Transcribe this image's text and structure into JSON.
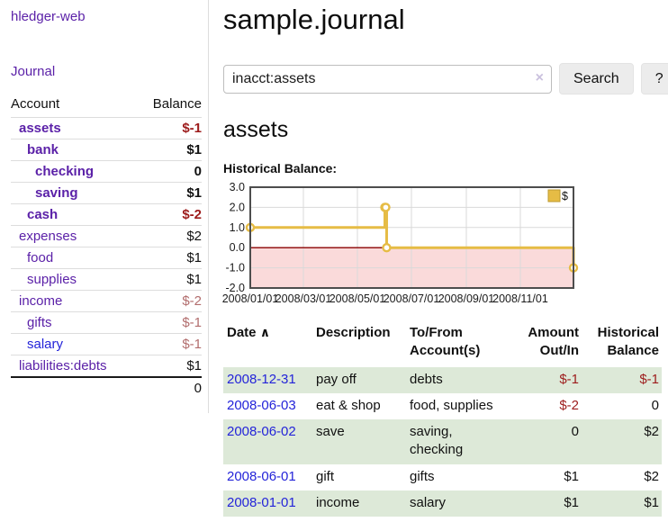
{
  "app": {
    "brand": "hledger-web"
  },
  "colors": {
    "accent_purple": "#5b21a8",
    "link_blue": "#2424d9",
    "negative": "#9d1c1c",
    "negative_soft": "#b26d6d",
    "row_stripe_green": "#dde9d8",
    "chart_gold": "#e6bc45",
    "chart_negative_fill": "#fadada",
    "chart_zero_line": "#8b0000"
  },
  "sidebar": {
    "nav": [
      {
        "label": "Journal"
      }
    ],
    "table": {
      "headers": {
        "account": "Account",
        "balance": "Balance"
      },
      "accounts": [
        {
          "name": "assets",
          "indent": 1,
          "bold": true,
          "balance": "$-1",
          "neg": "strong",
          "link": "purple"
        },
        {
          "name": "bank",
          "indent": 2,
          "bold": true,
          "balance": "$1",
          "neg": "",
          "link": "purple"
        },
        {
          "name": "checking",
          "indent": 3,
          "bold": true,
          "balance": "0",
          "neg": "",
          "link": "purple"
        },
        {
          "name": "saving",
          "indent": 3,
          "bold": true,
          "balance": "$1",
          "neg": "",
          "link": "purple"
        },
        {
          "name": "cash",
          "indent": 2,
          "bold": true,
          "balance": "$-2",
          "neg": "strong",
          "link": "purple"
        },
        {
          "name": "expenses",
          "indent": 1,
          "bold": false,
          "balance": "$2",
          "neg": "",
          "link": "purple"
        },
        {
          "name": "food",
          "indent": 2,
          "bold": false,
          "balance": "$1",
          "neg": "",
          "link": "purple"
        },
        {
          "name": "supplies",
          "indent": 2,
          "bold": false,
          "balance": "$1",
          "neg": "",
          "link": "purple"
        },
        {
          "name": "income",
          "indent": 1,
          "bold": false,
          "balance": "$-2",
          "neg": "soft",
          "link": "purple"
        },
        {
          "name": "gifts",
          "indent": 2,
          "bold": false,
          "balance": "$-1",
          "neg": "soft",
          "link": "purple"
        },
        {
          "name": "salary",
          "indent": 2,
          "bold": false,
          "balance": "$-1",
          "neg": "soft",
          "link": "blue"
        },
        {
          "name": "liabilities:debts",
          "indent": 1,
          "bold": false,
          "balance": "$1",
          "neg": "",
          "link": "purple"
        }
      ],
      "total": "0"
    }
  },
  "header": {
    "title": "sample.journal"
  },
  "search": {
    "value": "inacct:assets",
    "clear_icon": "×",
    "button_label": "Search",
    "help_label": "?"
  },
  "account_page": {
    "heading": "assets",
    "chart_label": "Historical Balance:"
  },
  "chart_data": {
    "type": "line",
    "step": true,
    "title": "Historical Balance",
    "series": [
      {
        "name": "$",
        "color": "#e6bc45",
        "points": [
          [
            "2008-01-01",
            1
          ],
          [
            "2008-06-01",
            2
          ],
          [
            "2008-06-02",
            2
          ],
          [
            "2008-06-03",
            0
          ],
          [
            "2008-12-31",
            -1
          ]
        ]
      }
    ],
    "ylim": [
      -2.0,
      3.0
    ],
    "yticks": [
      3.0,
      2.0,
      1.0,
      0.0,
      -1.0,
      -2.0
    ],
    "xticks": [
      "2008/01/01",
      "2008/03/01",
      "2008/05/01",
      "2008/07/01",
      "2008/09/01",
      "2008/11/01"
    ],
    "xrange": [
      "2008-01-01",
      "2008-12-31"
    ],
    "grid": true,
    "negative_fill": "#fadada",
    "zero_line_color": "#8b0000",
    "legend": {
      "label": "$",
      "position": "top-right",
      "swatch_color": "#e6bc45"
    }
  },
  "register_table": {
    "headers": {
      "date": "Date",
      "sort_icon": "∧",
      "description": "Description",
      "accounts": "To/From Account(s)",
      "amount": "Amount Out/In",
      "balance": "Historical Balance"
    },
    "rows": [
      {
        "date": "2008-12-31",
        "description": "pay off",
        "accounts": "debts",
        "amount": "$-1",
        "balance": "$-1",
        "shade": true
      },
      {
        "date": "2008-06-03",
        "description": "eat & shop",
        "accounts": "food, supplies",
        "amount": "$-2",
        "balance": "0",
        "shade": false
      },
      {
        "date": "2008-06-02",
        "description": "save",
        "accounts": "saving, checking",
        "amount": "0",
        "balance": "$2",
        "shade": true
      },
      {
        "date": "2008-06-01",
        "description": "gift",
        "accounts": "gifts",
        "amount": "$1",
        "balance": "$2",
        "shade": false
      },
      {
        "date": "2008-01-01",
        "description": "income",
        "accounts": "salary",
        "amount": "$1",
        "balance": "$1",
        "shade": true
      }
    ]
  }
}
